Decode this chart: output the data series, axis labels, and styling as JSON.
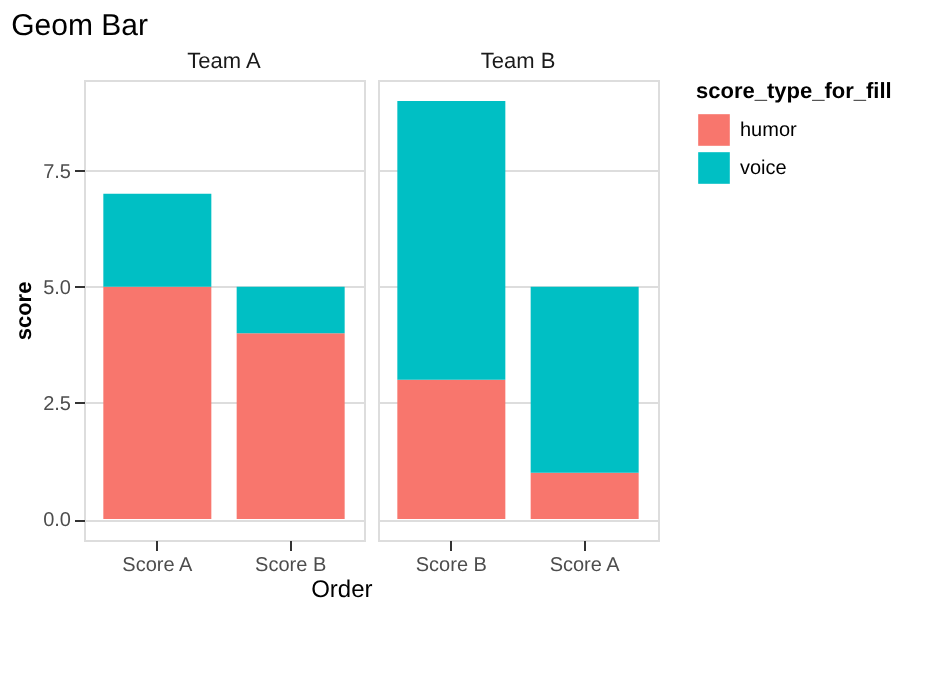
{
  "chart_data": [
    {
      "type": "bar",
      "title": "Geom Bar",
      "subtitle": "Team A",
      "xlabel": "Order",
      "ylabel": "score",
      "stacked": true,
      "categories": [
        "Score A",
        "Score B"
      ],
      "series": [
        {
          "name": "humor",
          "color": "#f8766d",
          "values": [
            5,
            4
          ]
        },
        {
          "name": "voice",
          "color": "#00bfc4",
          "values": [
            2,
            1
          ]
        }
      ],
      "ylim": [
        -0.45,
        9.45
      ],
      "yticks": [
        {
          "value": 0,
          "label": "0.0"
        },
        2.5,
        {
          "value": 5,
          "label": "5.0"
        },
        7.5
      ],
      "grid": true,
      "legend": "right",
      "legend_title": "score_type_for_fill"
    },
    {
      "type": "bar",
      "subtitle": "Team B",
      "stacked": true,
      "categories": [
        "Score B",
        "Score A"
      ],
      "series": [
        {
          "name": "humor",
          "color": "#f8766d",
          "values": [
            3,
            1
          ]
        },
        {
          "name": "voice",
          "color": "#00bfc4",
          "values": [
            6,
            4
          ]
        }
      ],
      "ylim": [
        -0.45,
        9.45
      ],
      "yticks": [
        0,
        2.5,
        5,
        7.5
      ],
      "grid": true,
      "legend": "right",
      "tick_labels": "x"
    }
  ]
}
